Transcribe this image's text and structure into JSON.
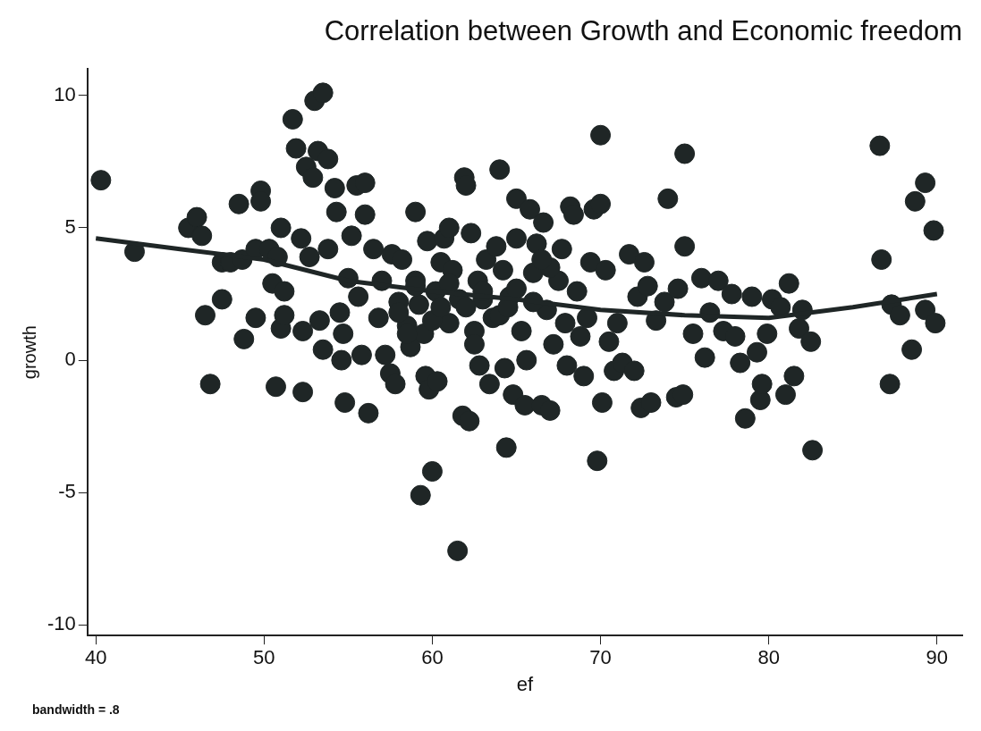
{
  "chart_data": {
    "type": "scatter",
    "title": "Correlation between Growth and Economic freedom",
    "xlabel": "ef",
    "ylabel": "growth",
    "annotations": [
      "bandwidth = .8"
    ],
    "xlim": [
      39.5,
      91.5
    ],
    "ylim": [
      -10.4,
      11
    ],
    "xticks": [
      40,
      50,
      60,
      70,
      80,
      90
    ],
    "yticks": [
      -10,
      -5,
      0,
      5,
      10
    ],
    "grid": false,
    "legend": false,
    "marker": "circle",
    "series": [
      {
        "type": "scatter",
        "color": "#1f2626",
        "x": [
          40.3,
          42.3,
          45.5,
          46,
          46.3,
          46.5,
          46.8,
          47.5,
          47.5,
          48,
          48.5,
          48.7,
          48.8,
          49.5,
          49.5,
          49.8,
          49.8,
          50.3,
          50.5,
          50.7,
          50.8,
          51,
          51,
          51.2,
          51.2,
          51.7,
          51.9,
          52.2,
          52.3,
          52.3,
          52.5,
          52.7,
          52.9,
          53,
          53.2,
          53.3,
          53.5,
          53.5,
          53.8,
          53.8,
          54.2,
          54.3,
          54.5,
          54.6,
          54.7,
          54.8,
          55,
          55.2,
          55.5,
          55.6,
          55.8,
          56,
          56,
          56.2,
          56.5,
          56.8,
          57,
          57.2,
          57.5,
          57.6,
          57.8,
          58,
          58.2,
          58.5,
          58.7,
          59,
          59,
          59.2,
          59.3,
          59.5,
          59.6,
          59.7,
          59.8,
          60,
          60.2,
          60.3,
          60.5,
          60.7,
          61,
          61,
          61.2,
          61.5,
          61.6,
          61.8,
          61.9,
          62,
          62.2,
          62.3,
          62.5,
          62.7,
          62.8,
          63,
          63.2,
          63.4,
          63.6,
          63.8,
          64,
          64.2,
          64.3,
          64.4,
          64.6,
          64.8,
          65,
          65,
          65.3,
          65.5,
          65.6,
          65.8,
          66,
          66.2,
          66.5,
          66.6,
          66.8,
          67,
          67.2,
          67.5,
          67.7,
          67.9,
          68,
          68.2,
          68.4,
          68.6,
          68.8,
          69,
          69.2,
          69.4,
          69.6,
          69.8,
          70,
          70,
          70.1,
          70.3,
          70.5,
          70.8,
          71,
          71.3,
          71.7,
          72,
          72.2,
          72.4,
          72.6,
          72.8,
          73,
          73.3,
          73.8,
          74,
          74.5,
          74.6,
          74.9,
          75,
          75,
          75.5,
          76,
          76.2,
          76.5,
          77,
          77.3,
          77.8,
          78,
          78.3,
          78.6,
          79,
          79.3,
          79.5,
          79.6,
          79.9,
          80.2,
          80.7,
          81,
          81.2,
          81.5,
          81.8,
          82,
          82.5,
          82.6,
          86.6,
          86.7,
          87.2,
          87.3,
          87.8,
          88.5,
          88.7,
          89.3,
          89.3,
          89.8,
          89.9,
          58,
          59,
          60,
          61,
          62,
          63,
          64,
          65,
          66,
          67,
          58.5,
          60.5,
          62.5,
          64.5,
          66.5
        ],
        "values": [
          6.8,
          4.1,
          5.0,
          5.4,
          4.7,
          1.7,
          -0.9,
          2.3,
          3.7,
          3.7,
          5.9,
          3.8,
          0.8,
          4.2,
          1.6,
          6.4,
          6.0,
          4.2,
          2.9,
          -1.0,
          3.9,
          5.0,
          1.2,
          1.7,
          2.6,
          9.1,
          8.0,
          4.6,
          -1.2,
          1.1,
          7.3,
          3.9,
          6.9,
          9.8,
          7.9,
          1.5,
          10.1,
          0.4,
          7.6,
          4.2,
          6.5,
          5.6,
          1.8,
          0.0,
          1.0,
          -1.6,
          3.1,
          4.7,
          6.6,
          2.4,
          0.2,
          5.5,
          6.7,
          -2.0,
          4.2,
          1.6,
          3.0,
          0.2,
          -0.5,
          4.0,
          -0.9,
          2.2,
          3.8,
          1.3,
          0.5,
          5.6,
          3.0,
          2.1,
          -5.1,
          1.0,
          -0.6,
          4.5,
          -1.1,
          -4.2,
          2.6,
          -0.8,
          3.7,
          4.6,
          1.4,
          5.0,
          3.4,
          -7.2,
          2.3,
          -2.1,
          6.9,
          6.6,
          -2.3,
          4.8,
          1.1,
          3.0,
          -0.2,
          2.3,
          3.8,
          -0.9,
          1.6,
          4.3,
          7.2,
          3.4,
          -0.3,
          -3.3,
          2.4,
          -1.3,
          4.6,
          6.1,
          1.1,
          -1.7,
          0.0,
          5.7,
          3.3,
          4.4,
          -1.7,
          5.2,
          1.9,
          -1.9,
          0.6,
          3.0,
          4.2,
          1.4,
          -0.2,
          5.8,
          5.5,
          2.6,
          0.9,
          -0.6,
          1.6,
          3.7,
          5.7,
          -3.8,
          8.5,
          5.9,
          -1.6,
          3.4,
          0.7,
          -0.4,
          1.4,
          -0.1,
          4.0,
          -0.4,
          2.4,
          -1.8,
          3.7,
          2.8,
          -1.6,
          1.5,
          2.2,
          6.1,
          -1.4,
          2.7,
          -1.3,
          4.3,
          7.8,
          1.0,
          3.1,
          0.1,
          1.8,
          3.0,
          1.1,
          2.5,
          0.9,
          -0.1,
          -2.2,
          2.4,
          0.3,
          -1.5,
          -0.9,
          1.0,
          2.3,
          2.0,
          -1.3,
          2.9,
          -0.6,
          1.2,
          1.9,
          0.7,
          -3.4,
          8.1,
          3.8,
          -0.9,
          2.1,
          1.7,
          0.4,
          6.0,
          6.7,
          1.9,
          4.9,
          1.4,
          1.8,
          2.8,
          1.5,
          2.9,
          2.0,
          2.6,
          1.7,
          2.7,
          2.2,
          3.5,
          1.0,
          2.0,
          0.6,
          2.0,
          3.8
        ]
      },
      {
        "type": "line",
        "color": "#1f2626",
        "line_style": "solid",
        "marker": "none",
        "x": [
          40,
          45,
          50,
          55,
          60,
          65,
          70,
          75,
          80,
          85,
          90
        ],
        "values": [
          4.6,
          4.2,
          3.8,
          3.0,
          2.6,
          2.3,
          1.9,
          1.7,
          1.6,
          2.0,
          2.5
        ]
      }
    ]
  }
}
